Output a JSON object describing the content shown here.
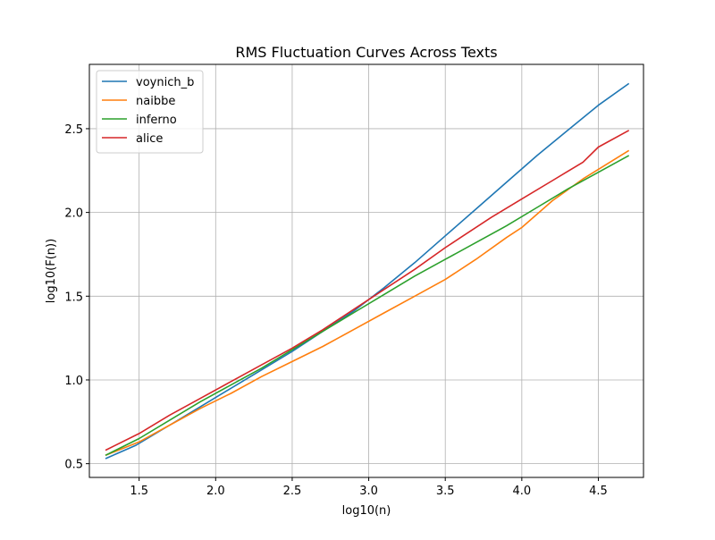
{
  "chart_data": {
    "type": "line",
    "title": "RMS Fluctuation Curves Across Texts",
    "xlabel": "log10(n)",
    "ylabel": "log10(F(n))",
    "xlim": [
      1.175,
      4.795
    ],
    "ylim": [
      0.418,
      2.884
    ],
    "xticks": [
      1.5,
      2.0,
      2.5,
      3.0,
      3.5,
      4.0,
      4.5
    ],
    "xtick_labels": [
      "1.5",
      "2.0",
      "2.5",
      "3.0",
      "3.5",
      "4.0",
      "4.5"
    ],
    "yticks": [
      0.5,
      1.0,
      1.5,
      2.0,
      2.5
    ],
    "ytick_labels": [
      "0.5",
      "1.0",
      "1.5",
      "2.0",
      "2.5"
    ],
    "grid": true,
    "legend_position": "upper-left",
    "series": [
      {
        "name": "voynich_b",
        "color": "#1f77b4",
        "x": [
          1.28,
          1.48,
          1.7,
          1.9,
          2.1,
          2.3,
          2.5,
          2.7,
          2.9,
          3.1,
          3.3,
          3.5,
          3.7,
          3.9,
          4.1,
          4.3,
          4.5,
          4.7
        ],
        "y": [
          0.53,
          0.61,
          0.73,
          0.84,
          0.95,
          1.06,
          1.17,
          1.29,
          1.41,
          1.55,
          1.7,
          1.86,
          2.02,
          2.18,
          2.34,
          2.49,
          2.64,
          2.77
        ]
      },
      {
        "name": "naibbe",
        "color": "#ff7f0e",
        "x": [
          1.28,
          1.5,
          1.7,
          1.9,
          2.1,
          2.3,
          2.5,
          2.7,
          2.9,
          3.1,
          3.3,
          3.5,
          3.7,
          3.9,
          4.0,
          4.2,
          4.4,
          4.7
        ],
        "y": [
          0.55,
          0.63,
          0.73,
          0.83,
          0.92,
          1.02,
          1.11,
          1.2,
          1.3,
          1.4,
          1.5,
          1.6,
          1.72,
          1.85,
          1.91,
          2.07,
          2.2,
          2.37
        ]
      },
      {
        "name": "inferno",
        "color": "#2ca02c",
        "x": [
          1.28,
          1.5,
          1.7,
          1.9,
          2.1,
          2.3,
          2.5,
          2.7,
          2.9,
          3.1,
          3.3,
          3.5,
          3.7,
          3.9,
          4.1,
          4.3,
          4.5,
          4.7
        ],
        "y": [
          0.55,
          0.65,
          0.76,
          0.87,
          0.97,
          1.07,
          1.18,
          1.29,
          1.4,
          1.51,
          1.62,
          1.72,
          1.82,
          1.92,
          2.03,
          2.14,
          2.24,
          2.34
        ]
      },
      {
        "name": "alice",
        "color": "#d62728",
        "x": [
          1.28,
          1.5,
          1.7,
          1.9,
          2.1,
          2.3,
          2.5,
          2.7,
          2.9,
          3.1,
          3.3,
          3.5,
          3.6,
          3.8,
          4.0,
          4.2,
          4.4,
          4.5,
          4.7
        ],
        "y": [
          0.58,
          0.68,
          0.79,
          0.89,
          0.99,
          1.09,
          1.19,
          1.3,
          1.42,
          1.54,
          1.66,
          1.79,
          1.85,
          1.97,
          2.08,
          2.19,
          2.3,
          2.39,
          2.49
        ]
      }
    ]
  }
}
